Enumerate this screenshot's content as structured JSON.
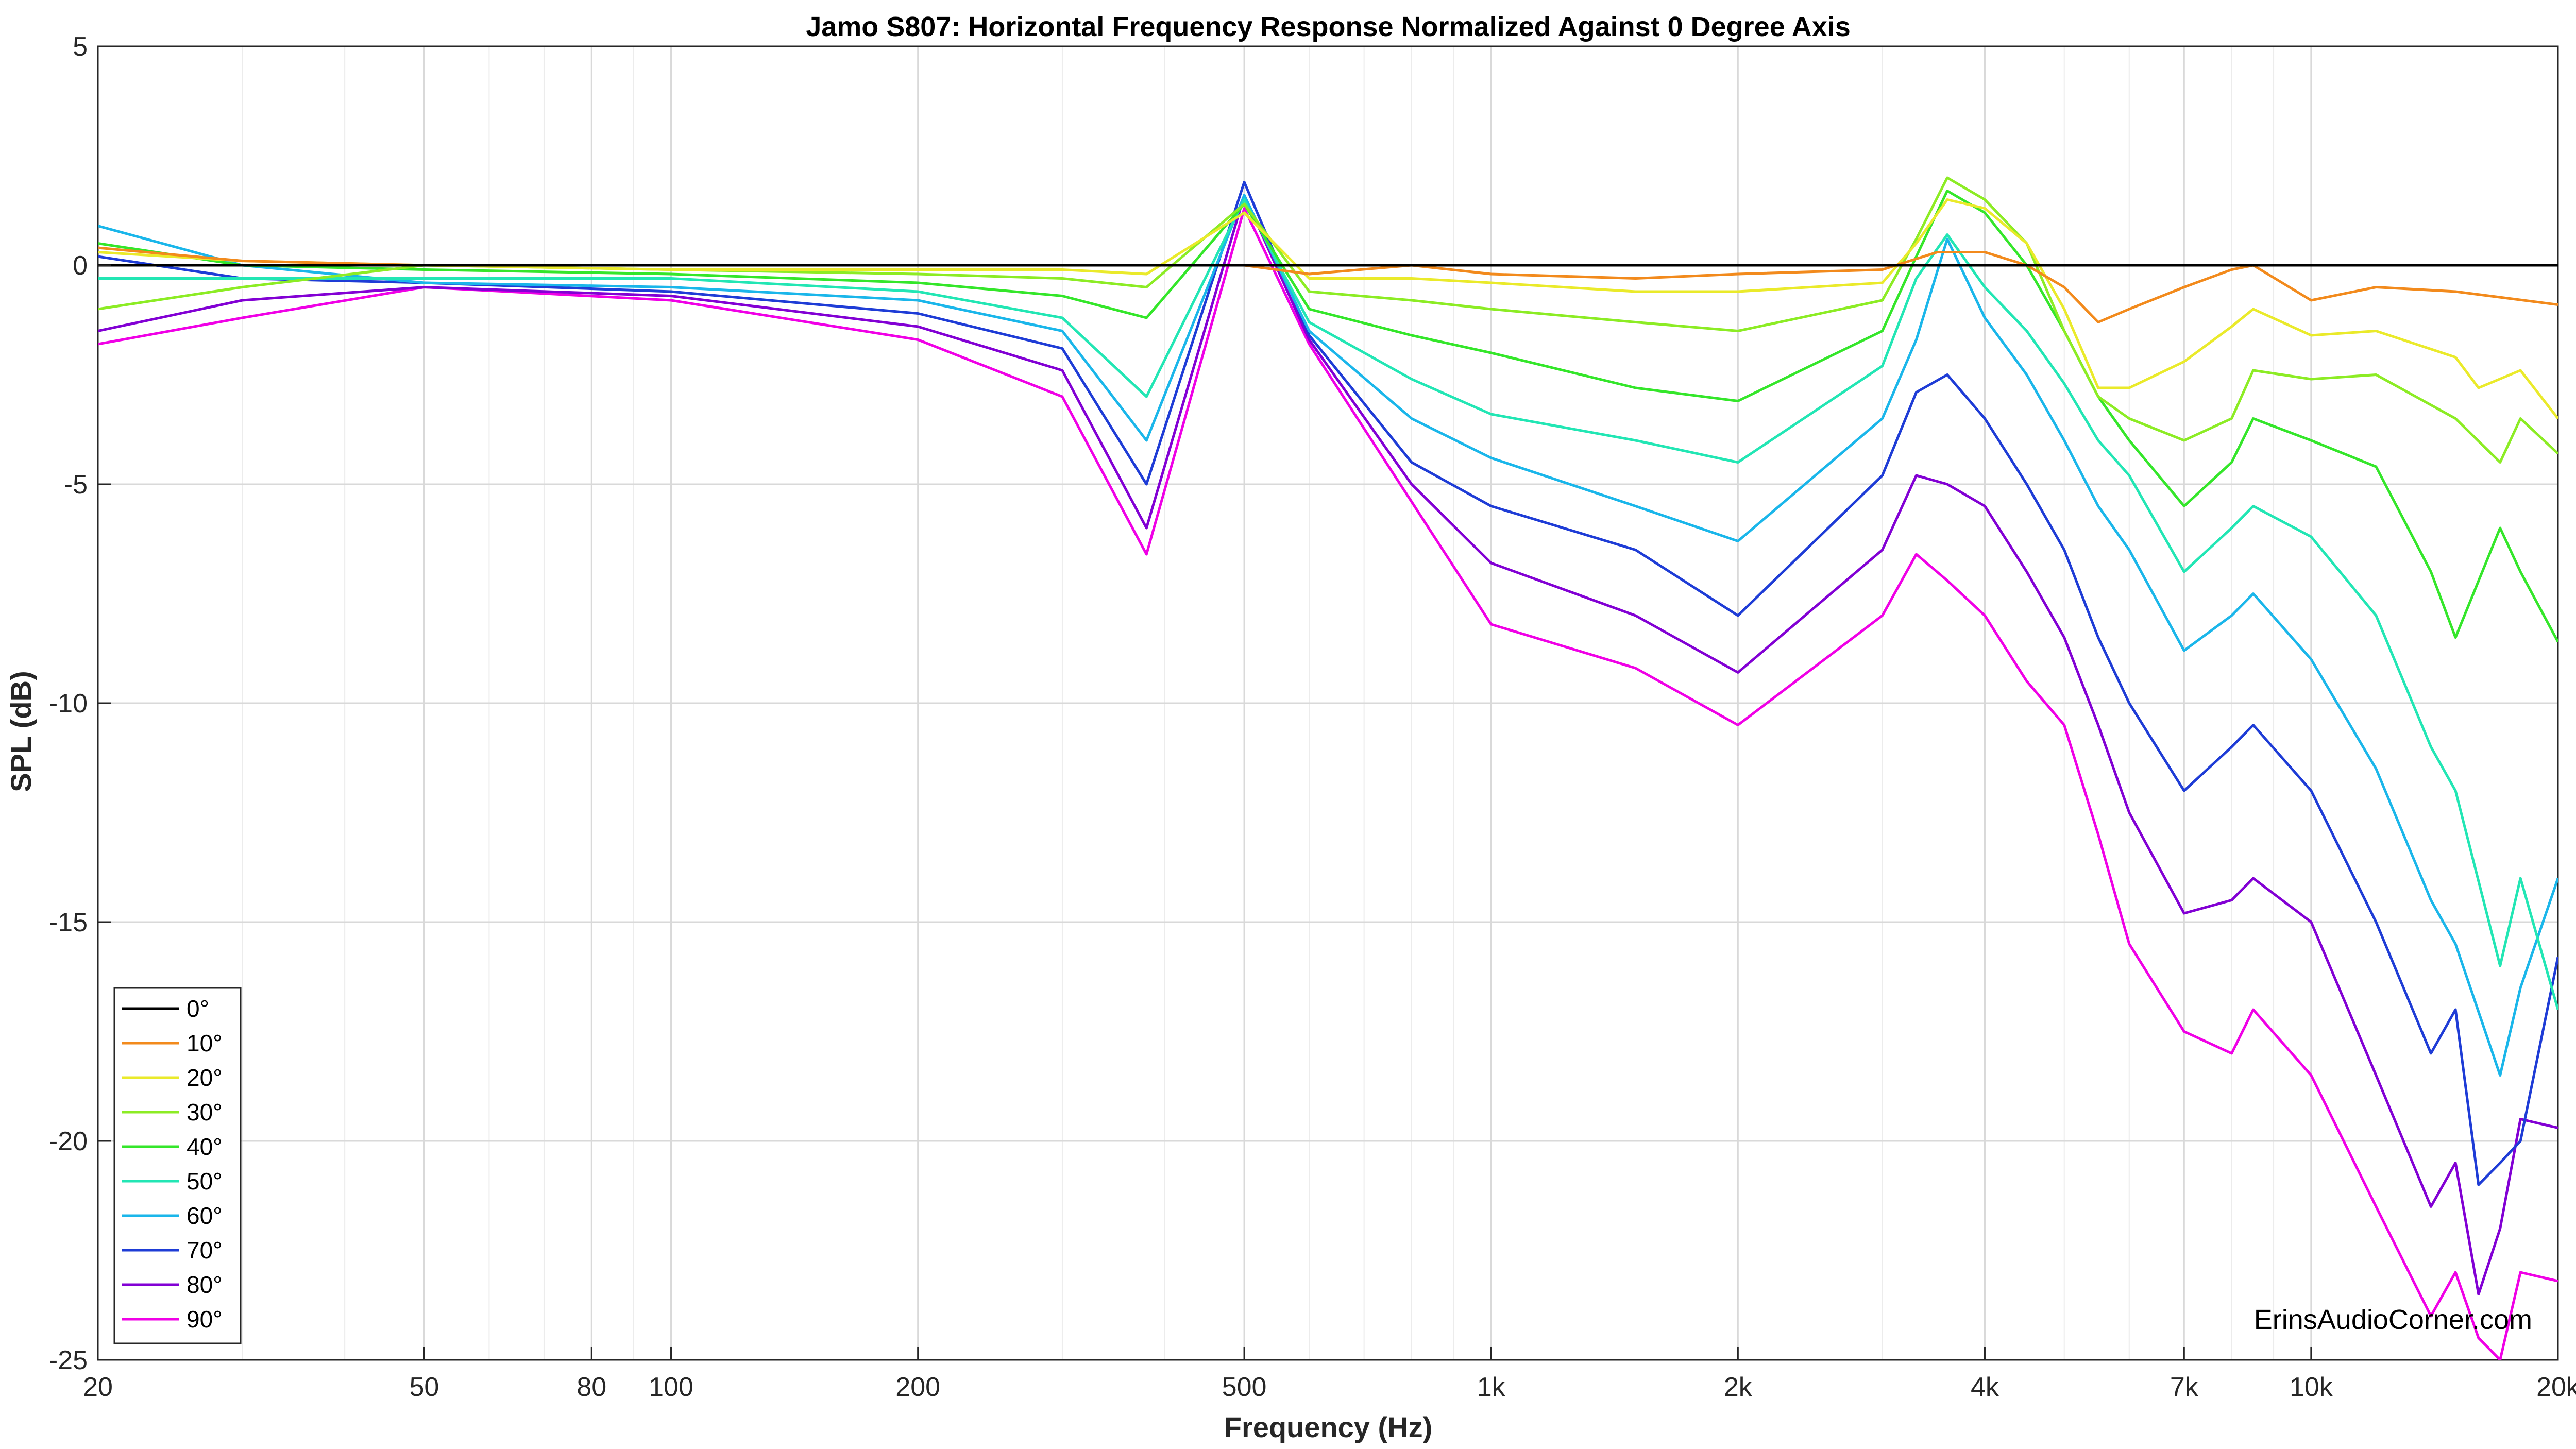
{
  "chart_data": {
    "type": "line",
    "title": "Jamo S807: Horizontal Frequency Response Normalized Against 0 Degree Axis",
    "xlabel": "Frequency (Hz)",
    "ylabel": "SPL (dB)",
    "x_scale": "log",
    "xlim": [
      20,
      20000
    ],
    "ylim": [
      -25,
      5
    ],
    "x_ticks": [
      20,
      50,
      80,
      100,
      200,
      500,
      1000,
      2000,
      4000,
      7000,
      10000,
      20000
    ],
    "x_tick_labels": [
      "20",
      "50",
      "80",
      "100",
      "200",
      "500",
      "1k",
      "2k",
      "4k",
      "7k",
      "10k",
      "20k"
    ],
    "y_ticks": [
      5,
      0,
      -5,
      -10,
      -15,
      -20,
      -25
    ],
    "y_tick_labels": [
      "5",
      "0",
      "-5",
      "-10",
      "-15",
      "-20",
      "-25"
    ],
    "grid": true,
    "legend_position": "bottom-left",
    "annotation": "ErinsAudioCorner.com",
    "series": [
      {
        "name": "0°",
        "color": "#000000",
        "x": [
          20,
          100,
          1000,
          10000,
          20000
        ],
        "y": [
          0,
          0,
          0,
          0,
          0
        ]
      },
      {
        "name": "10°",
        "color": "#f28a1c",
        "x": [
          20,
          30,
          50,
          100,
          200,
          300,
          380,
          500,
          600,
          800,
          1000,
          1500,
          2000,
          3000,
          3500,
          4000,
          4500,
          5000,
          5500,
          6000,
          7000,
          8000,
          8500,
          10000,
          12000,
          15000,
          20000
        ],
        "y": [
          0.4,
          0.1,
          0,
          0,
          0,
          0,
          0,
          0,
          -0.2,
          0,
          -0.2,
          -0.3,
          -0.2,
          -0.1,
          0.3,
          0.3,
          0,
          -0.5,
          -1.3,
          -1.0,
          -0.5,
          -0.1,
          0,
          -0.8,
          -0.5,
          -0.6,
          -0.9
        ]
      },
      {
        "name": "20°",
        "color": "#eaea2a",
        "x": [
          20,
          30,
          50,
          100,
          200,
          300,
          380,
          500,
          600,
          800,
          1000,
          1500,
          2000,
          3000,
          3300,
          3600,
          4000,
          4500,
          5000,
          5500,
          6000,
          7000,
          8000,
          8500,
          10000,
          12000,
          15000,
          16000,
          18000,
          20000
        ],
        "y": [
          0.3,
          0.1,
          0,
          -0.1,
          -0.1,
          -0.1,
          -0.2,
          1.2,
          -0.3,
          -0.3,
          -0.4,
          -0.6,
          -0.6,
          -0.4,
          0.5,
          1.5,
          1.3,
          0.5,
          -1.0,
          -2.8,
          -2.8,
          -2.2,
          -1.4,
          -1.0,
          -1.6,
          -1.5,
          -2.1,
          -2.8,
          -2.4,
          -3.5
        ]
      },
      {
        "name": "30°",
        "color": "#8cec24",
        "x": [
          20,
          30,
          50,
          100,
          200,
          300,
          380,
          500,
          600,
          800,
          1000,
          1500,
          2000,
          3000,
          3300,
          3600,
          4000,
          4500,
          5000,
          5500,
          6000,
          7000,
          8000,
          8500,
          10000,
          12000,
          15000,
          17000,
          18000,
          20000
        ],
        "y": [
          -1.0,
          -0.5,
          0,
          -0.1,
          -0.2,
          -0.3,
          -0.5,
          1.4,
          -0.6,
          -0.8,
          -1.0,
          -1.3,
          -1.5,
          -0.8,
          0.6,
          2.0,
          1.5,
          0.5,
          -1.5,
          -3.0,
          -3.5,
          -4.0,
          -3.5,
          -2.4,
          -2.6,
          -2.5,
          -3.5,
          -4.5,
          -3.5,
          -4.3
        ]
      },
      {
        "name": "40°",
        "color": "#34e62a",
        "x": [
          20,
          30,
          50,
          100,
          200,
          300,
          380,
          500,
          600,
          800,
          1000,
          1500,
          2000,
          3000,
          3300,
          3600,
          4000,
          4500,
          5000,
          5500,
          6000,
          7000,
          8000,
          8500,
          10000,
          12000,
          14000,
          15000,
          17000,
          18000,
          20000
        ],
        "y": [
          0.5,
          0,
          -0.1,
          -0.2,
          -0.4,
          -0.7,
          -1.2,
          1.4,
          -1.0,
          -1.6,
          -2.0,
          -2.8,
          -3.1,
          -1.5,
          0.2,
          1.7,
          1.2,
          0,
          -1.5,
          -3.0,
          -4.0,
          -5.5,
          -4.5,
          -3.5,
          -4.0,
          -4.6,
          -7.0,
          -8.5,
          -6.0,
          -7.0,
          -8.6
        ]
      },
      {
        "name": "50°",
        "color": "#22e6b4",
        "x": [
          20,
          30,
          50,
          100,
          200,
          300,
          380,
          500,
          600,
          800,
          1000,
          1500,
          2000,
          3000,
          3300,
          3600,
          4000,
          4500,
          5000,
          5500,
          6000,
          7000,
          8000,
          8500,
          10000,
          12000,
          14000,
          15000,
          17000,
          18000,
          20000
        ],
        "y": [
          -0.3,
          -0.3,
          -0.3,
          -0.3,
          -0.6,
          -1.2,
          -3.0,
          1.5,
          -1.3,
          -2.6,
          -3.4,
          -4.0,
          -4.5,
          -2.3,
          -0.3,
          0.7,
          -0.5,
          -1.5,
          -2.7,
          -4.0,
          -4.8,
          -7.0,
          -6.0,
          -5.5,
          -6.2,
          -8.0,
          -11.0,
          -12.0,
          -16.0,
          -14.0,
          -17.0
        ]
      },
      {
        "name": "60°",
        "color": "#1ab6ea",
        "x": [
          20,
          30,
          50,
          100,
          200,
          300,
          380,
          500,
          600,
          800,
          1000,
          1500,
          2000,
          3000,
          3300,
          3600,
          4000,
          4500,
          5000,
          5500,
          6000,
          7000,
          8000,
          8500,
          10000,
          12000,
          14000,
          15000,
          17000,
          18000,
          20000
        ],
        "y": [
          0.9,
          0,
          -0.4,
          -0.5,
          -0.8,
          -1.5,
          -4.0,
          1.6,
          -1.5,
          -3.5,
          -4.4,
          -5.5,
          -6.3,
          -3.5,
          -1.7,
          0.6,
          -1.2,
          -2.5,
          -4.0,
          -5.5,
          -6.5,
          -8.8,
          -8.0,
          -7.5,
          -9.0,
          -11.5,
          -14.5,
          -15.5,
          -18.5,
          -16.5,
          -14.0
        ]
      },
      {
        "name": "70°",
        "color": "#1e3cd6",
        "x": [
          20,
          30,
          50,
          100,
          200,
          300,
          380,
          500,
          600,
          800,
          1000,
          1500,
          2000,
          3000,
          3300,
          3600,
          4000,
          4500,
          5000,
          5500,
          6000,
          7000,
          8000,
          8500,
          10000,
          12000,
          14000,
          15000,
          16000,
          17000,
          18000,
          20000
        ],
        "y": [
          0.2,
          -0.3,
          -0.4,
          -0.6,
          -1.1,
          -1.9,
          -5.0,
          1.9,
          -1.6,
          -4.5,
          -5.5,
          -6.5,
          -8.0,
          -4.8,
          -2.9,
          -2.5,
          -3.5,
          -5.0,
          -6.5,
          -8.5,
          -10.0,
          -12.0,
          -11.0,
          -10.5,
          -12.0,
          -15.0,
          -18.0,
          -17.0,
          -21.0,
          -20.5,
          -20.0,
          -15.8
        ]
      },
      {
        "name": "80°",
        "color": "#8200d4",
        "x": [
          20,
          30,
          50,
          100,
          200,
          300,
          380,
          500,
          600,
          800,
          1000,
          1500,
          2000,
          3000,
          3300,
          3600,
          4000,
          4500,
          5000,
          5500,
          6000,
          7000,
          8000,
          8500,
          10000,
          12000,
          14000,
          15000,
          16000,
          17000,
          18000,
          20000
        ],
        "y": [
          -1.5,
          -0.8,
          -0.5,
          -0.7,
          -1.4,
          -2.4,
          -6.0,
          1.6,
          -1.7,
          -5.0,
          -6.8,
          -8.0,
          -9.3,
          -6.5,
          -4.8,
          -5.0,
          -5.5,
          -7.0,
          -8.5,
          -10.5,
          -12.5,
          -14.8,
          -14.5,
          -14.0,
          -15.0,
          -18.5,
          -21.5,
          -20.5,
          -23.5,
          -22.0,
          -19.5,
          -19.7
        ]
      },
      {
        "name": "90°",
        "color": "#f000e6",
        "x": [
          20,
          30,
          50,
          100,
          200,
          300,
          380,
          500,
          600,
          800,
          1000,
          1500,
          2000,
          3000,
          3300,
          3600,
          4000,
          4500,
          5000,
          5500,
          6000,
          7000,
          8000,
          8500,
          10000,
          12000,
          14000,
          15000,
          16000,
          17000,
          18000,
          20000
        ],
        "y": [
          -1.8,
          -1.2,
          -0.5,
          -0.8,
          -1.7,
          -3.0,
          -6.6,
          1.3,
          -1.8,
          -5.4,
          -8.2,
          -9.2,
          -10.5,
          -8.0,
          -6.6,
          -7.2,
          -8.0,
          -9.5,
          -10.5,
          -13.0,
          -15.5,
          -17.5,
          -18.0,
          -17.0,
          -18.5,
          -21.5,
          -24.0,
          -23.0,
          -24.5,
          -25.0,
          -23.0,
          -23.2
        ]
      }
    ]
  }
}
